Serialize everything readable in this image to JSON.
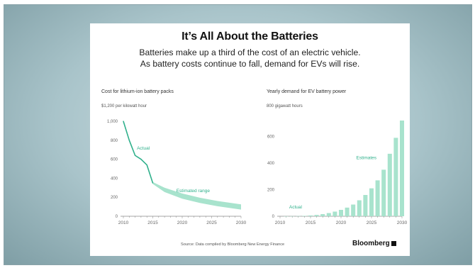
{
  "header": {
    "title": "It’s All About the Batteries",
    "subtitle_line1": "Batteries make up a third of the cost of an electric vehicle.",
    "subtitle_line2": "As battery costs continue to fall, demand for EVs will rise."
  },
  "footer": {
    "source": "Source: Data compiled by Bloomberg New Energy Finance",
    "brand": "Bloomberg"
  },
  "colors": {
    "accent": "#2fb08b",
    "fill": "#a8e3cd",
    "axis": "#888888"
  },
  "chart_data": [
    {
      "type": "line",
      "title": "Cost for lithium-ion battery packs",
      "ylabel": "$1,200 per kilowatt hour",
      "xlim": [
        2010,
        2030
      ],
      "ylim": [
        0,
        1000
      ],
      "yticks": [
        0,
        200,
        400,
        600,
        800,
        "1,000"
      ],
      "xticks": [
        2010,
        2015,
        2020,
        2025,
        2030
      ],
      "series": [
        {
          "name": "Actual",
          "x": [
            2010,
            2011,
            2012,
            2013,
            2014,
            2015
          ],
          "values": [
            1000,
            800,
            640,
            600,
            540,
            350
          ]
        }
      ],
      "range": {
        "name": "Estimated range",
        "x": [
          2015,
          2017,
          2020,
          2023,
          2026,
          2030
        ],
        "upper": [
          360,
          300,
          240,
          195,
          160,
          125
        ],
        "lower": [
          340,
          255,
          185,
          140,
          105,
          70
        ]
      }
    },
    {
      "type": "bar",
      "title": "Yearly demand for EV battery power",
      "ylabel": "800 gigawatt hours",
      "xlim": [
        2010,
        2030
      ],
      "ylim": [
        0,
        800
      ],
      "yticks": [
        0,
        200,
        400,
        600
      ],
      "xticks": [
        2010,
        2015,
        2020,
        2025,
        2030
      ],
      "annotations": [
        "Actual",
        "Estimates"
      ],
      "x": [
        2011,
        2012,
        2013,
        2014,
        2015,
        2016,
        2017,
        2018,
        2019,
        2020,
        2021,
        2022,
        2023,
        2024,
        2025,
        2026,
        2027,
        2028,
        2029,
        2030
      ],
      "values": [
        0.3,
        0.6,
        1.5,
        3,
        6,
        10,
        16,
        24,
        35,
        48,
        65,
        88,
        120,
        160,
        210,
        270,
        350,
        470,
        590,
        720
      ]
    }
  ]
}
